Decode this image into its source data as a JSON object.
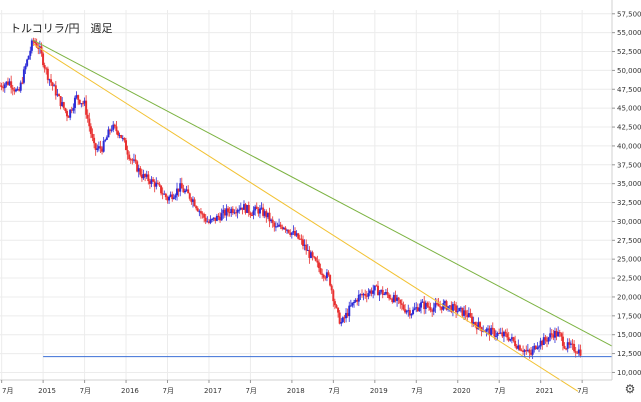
{
  "chart_data": {
    "type": "candlestick",
    "title": "トルコリラ/円　週足",
    "y_ticks": [
      "57,500",
      "55,000",
      "52,500",
      "50,000",
      "47,500",
      "45,000",
      "42,500",
      "40,000",
      "37,500",
      "35,000",
      "32,500",
      "30,000",
      "27,500",
      "25,000",
      "22,500",
      "20,000",
      "17,500",
      "15,000",
      "12,500",
      "10,000"
    ],
    "ylim": [
      9.0,
      58.0
    ],
    "x_ticks": [
      {
        "label": "7月",
        "t": 2014.5
      },
      {
        "label": "2015",
        "t": 2015.0
      },
      {
        "label": "7月",
        "t": 2015.5
      },
      {
        "label": "2016",
        "t": 2016.0
      },
      {
        "label": "7月",
        "t": 2016.5
      },
      {
        "label": "2017",
        "t": 2017.0
      },
      {
        "label": "7月",
        "t": 2017.5
      },
      {
        "label": "2018",
        "t": 2018.0
      },
      {
        "label": "7月",
        "t": 2018.5
      },
      {
        "label": "2019",
        "t": 2019.0
      },
      {
        "label": "7月",
        "t": 2019.5
      },
      {
        "label": "2020",
        "t": 2020.0
      },
      {
        "label": "7月",
        "t": 2020.5
      },
      {
        "label": "2021",
        "t": 2021.0
      },
      {
        "label": "7月",
        "t": 2021.5
      }
    ],
    "xlim": [
      2014.48,
      2021.86
    ],
    "price_path": [
      [
        2014.48,
        48.0
      ],
      [
        2014.6,
        48.5
      ],
      [
        2014.7,
        46.8
      ],
      [
        2014.8,
        51.0
      ],
      [
        2014.88,
        54.0
      ],
      [
        2014.95,
        53.0
      ],
      [
        2015.05,
        49.5
      ],
      [
        2015.2,
        46.0
      ],
      [
        2015.3,
        44.0
      ],
      [
        2015.4,
        46.5
      ],
      [
        2015.5,
        45.5
      ],
      [
        2015.62,
        39.5
      ],
      [
        2015.72,
        39.8
      ],
      [
        2015.82,
        42.5
      ],
      [
        2015.92,
        41.8
      ],
      [
        2016.05,
        38.5
      ],
      [
        2016.2,
        36.0
      ],
      [
        2016.35,
        35.0
      ],
      [
        2016.5,
        33.0
      ],
      [
        2016.65,
        34.5
      ],
      [
        2016.8,
        33.0
      ],
      [
        2016.92,
        30.8
      ],
      [
        2017.0,
        29.8
      ],
      [
        2017.1,
        30.5
      ],
      [
        2017.25,
        31.5
      ],
      [
        2017.4,
        32.0
      ],
      [
        2017.5,
        31.3
      ],
      [
        2017.6,
        31.5
      ],
      [
        2017.7,
        30.8
      ],
      [
        2017.8,
        29.0
      ],
      [
        2017.9,
        29.5
      ],
      [
        2018.0,
        28.5
      ],
      [
        2018.1,
        27.5
      ],
      [
        2018.25,
        25.0
      ],
      [
        2018.35,
        23.5
      ],
      [
        2018.45,
        22.5
      ],
      [
        2018.55,
        17.5
      ],
      [
        2018.6,
        16.5
      ],
      [
        2018.7,
        18.5
      ],
      [
        2018.8,
        20.0
      ],
      [
        2018.9,
        20.5
      ],
      [
        2019.0,
        21.0
      ],
      [
        2019.1,
        20.5
      ],
      [
        2019.2,
        20.0
      ],
      [
        2019.35,
        18.5
      ],
      [
        2019.45,
        18.0
      ],
      [
        2019.55,
        19.0
      ],
      [
        2019.7,
        18.6
      ],
      [
        2019.85,
        18.9
      ],
      [
        2020.0,
        18.2
      ],
      [
        2020.1,
        17.8
      ],
      [
        2020.2,
        16.5
      ],
      [
        2020.35,
        15.5
      ],
      [
        2020.5,
        15.0
      ],
      [
        2020.6,
        14.8
      ],
      [
        2020.7,
        13.8
      ],
      [
        2020.8,
        13.0
      ],
      [
        2020.88,
        12.3
      ],
      [
        2020.95,
        13.8
      ],
      [
        2021.05,
        14.2
      ],
      [
        2021.15,
        15.2
      ],
      [
        2021.22,
        15.0
      ],
      [
        2021.3,
        13.5
      ],
      [
        2021.4,
        13.2
      ],
      [
        2021.48,
        12.8
      ]
    ],
    "trendlines": [
      {
        "color": "#7cb342",
        "x1": 2014.88,
        "y1": 54.0,
        "x2": 2021.86,
        "y2": 13.5
      },
      {
        "color": "#f2c233",
        "x1": 2014.88,
        "y1": 53.5,
        "x2": 2021.45,
        "y2": 7.5
      },
      {
        "color": "#3b6fd6",
        "x1": 2015.0,
        "y1": 12.1,
        "x2": 2021.86,
        "y2": 12.1
      }
    ],
    "colors": {
      "up": "#2b2bd6",
      "down": "#e83030",
      "grid": "#ececec"
    }
  },
  "ui": {
    "settings_icon": "gear-icon",
    "settings_glyph": "⚙"
  }
}
